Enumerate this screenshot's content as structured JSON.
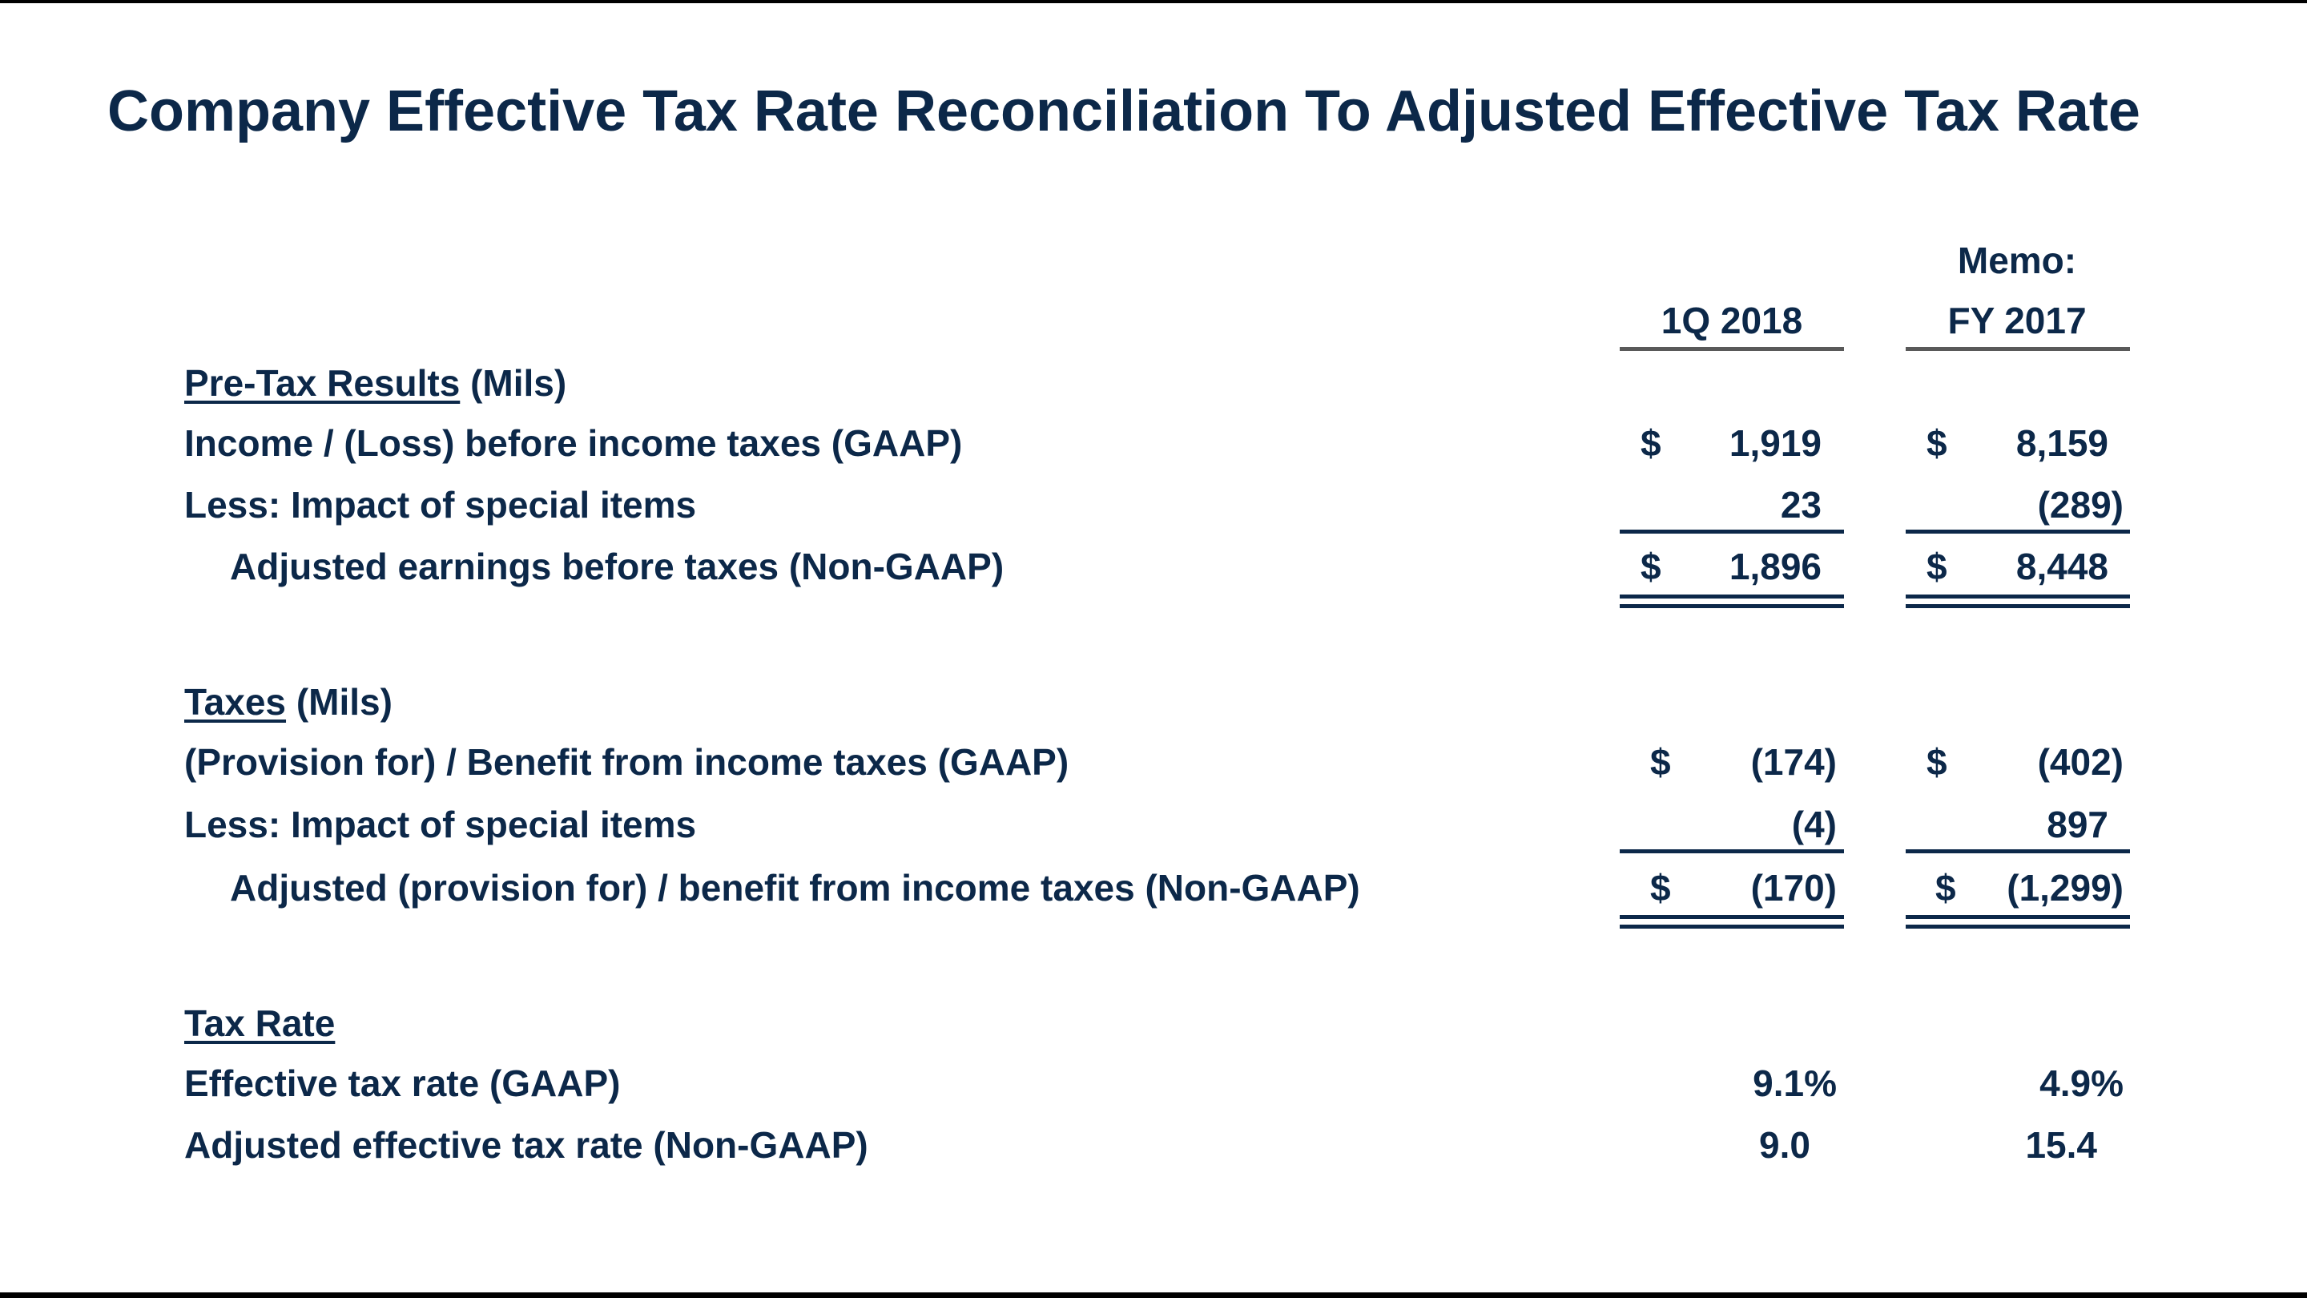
{
  "title": "Company Effective Tax Rate Reconciliation To Adjusted Effective Tax Rate",
  "columns": {
    "memo": "Memo:",
    "col1": "1Q 2018",
    "col2": "FY 2017"
  },
  "pretax": {
    "heading": "Pre-Tax Results",
    "unit": "(Mils)",
    "rows": [
      {
        "label": "Income / (Loss) before income taxes (GAAP)",
        "c1_currency": "$",
        "c1": "1,919",
        "c2_currency": "$",
        "c2": "8,159"
      },
      {
        "label": "Less:  Impact of special items",
        "c1": "23",
        "c2": "(289)"
      },
      {
        "label": "Adjusted earnings before taxes (Non-GAAP)",
        "c1_currency": "$",
        "c1": "1,896",
        "c2_currency": "$",
        "c2": "8,448"
      }
    ]
  },
  "taxes": {
    "heading": "Taxes",
    "unit": "(Mils)",
    "rows": [
      {
        "label": "(Provision for) / Benefit from income taxes (GAAP)",
        "c1_currency": "$",
        "c1": "(174)",
        "c2_currency": "$",
        "c2": "(402)"
      },
      {
        "label": "Less:  Impact of special items",
        "c1": "(4)",
        "c2": "897"
      },
      {
        "label": "Adjusted (provision for) / benefit from income taxes (Non-GAAP)",
        "c1_currency": "$",
        "c1": "(170)",
        "c2_currency": "$",
        "c2": "(1,299)"
      }
    ]
  },
  "taxrate": {
    "heading": "Tax Rate",
    "rows": [
      {
        "label": "Effective tax rate (GAAP)",
        "c1": "9.1%",
        "c2": "4.9%"
      },
      {
        "label": "Adjusted effective tax rate (Non-GAAP)",
        "c1": "9.0",
        "c2": "15.4"
      }
    ]
  },
  "colors": {
    "text": "#0c2849",
    "header_rule": "#595959"
  }
}
